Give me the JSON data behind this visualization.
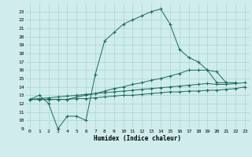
{
  "xlabel": "Humidex (Indice chaleur)",
  "bg_color": "#d0ecec",
  "grid_color": "#a8d4d4",
  "line_color": "#1a6b5a",
  "xlim": [
    -0.5,
    23.5
  ],
  "ylim": [
    9,
    24
  ],
  "xticks": [
    0,
    1,
    2,
    3,
    4,
    5,
    6,
    7,
    8,
    9,
    10,
    11,
    12,
    13,
    14,
    15,
    16,
    17,
    18,
    19,
    20,
    21,
    22,
    23
  ],
  "yticks": [
    9,
    10,
    11,
    12,
    13,
    14,
    15,
    16,
    17,
    18,
    19,
    20,
    21,
    22,
    23
  ],
  "s1x": [
    0,
    1,
    2,
    3,
    4,
    5,
    6,
    7,
    8,
    9,
    10,
    11,
    12,
    13,
    14,
    15,
    16,
    17,
    18,
    19,
    20,
    21
  ],
  "s1y": [
    12.5,
    13.0,
    12.0,
    9.0,
    10.5,
    10.5,
    10.0,
    15.5,
    19.5,
    20.5,
    21.5,
    22.0,
    22.5,
    23.0,
    23.3,
    21.5,
    18.5,
    17.5,
    17.0,
    16.0,
    14.5,
    14.5
  ],
  "s2x": [
    0,
    1,
    2,
    3,
    4,
    5,
    6,
    7,
    8,
    9,
    10,
    11,
    12,
    13,
    14,
    15,
    16,
    17,
    18,
    19,
    20,
    21,
    22
  ],
  "s2y": [
    12.5,
    12.5,
    12.5,
    12.5,
    12.5,
    12.8,
    13.0,
    13.2,
    13.5,
    13.8,
    14.0,
    14.3,
    14.5,
    14.8,
    15.0,
    15.3,
    15.6,
    16.0,
    16.0,
    16.0,
    15.8,
    14.5,
    14.5
  ],
  "s3x": [
    0,
    1,
    2,
    3,
    4,
    5,
    6,
    7,
    8,
    9,
    10,
    11,
    12,
    13,
    14,
    15,
    16,
    17,
    18,
    19,
    20,
    21,
    22,
    23
  ],
  "s3y": [
    12.5,
    12.6,
    12.7,
    12.8,
    12.9,
    13.0,
    13.1,
    13.2,
    13.3,
    13.4,
    13.5,
    13.6,
    13.7,
    13.8,
    13.9,
    14.0,
    14.1,
    14.2,
    14.3,
    14.4,
    14.3,
    14.3,
    14.4,
    14.5
  ],
  "s4x": [
    0,
    1,
    2,
    3,
    4,
    5,
    6,
    7,
    8,
    9,
    10,
    11,
    12,
    13,
    14,
    15,
    16,
    17,
    18,
    19,
    20,
    21,
    22,
    23
  ],
  "s4y": [
    12.5,
    12.5,
    12.5,
    12.5,
    12.5,
    12.6,
    12.6,
    12.7,
    12.8,
    12.9,
    13.0,
    13.0,
    13.1,
    13.2,
    13.3,
    13.4,
    13.4,
    13.5,
    13.5,
    13.6,
    13.6,
    13.7,
    13.8,
    14.0
  ]
}
